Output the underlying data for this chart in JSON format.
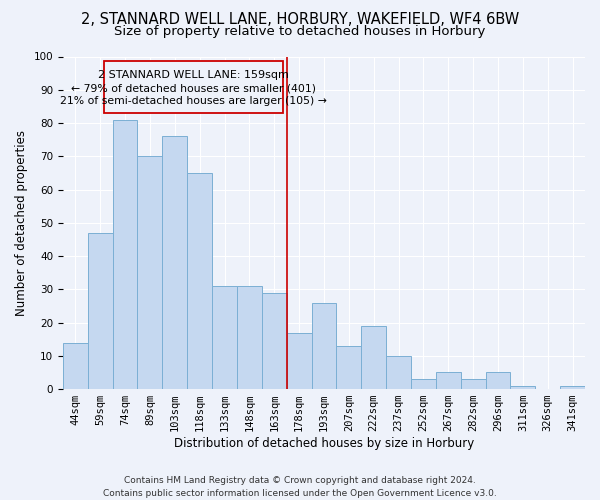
{
  "title": "2, STANNARD WELL LANE, HORBURY, WAKEFIELD, WF4 6BW",
  "subtitle": "Size of property relative to detached houses in Horbury",
  "xlabel": "Distribution of detached houses by size in Horbury",
  "ylabel": "Number of detached properties",
  "bar_labels": [
    "44sqm",
    "59sqm",
    "74sqm",
    "89sqm",
    "103sqm",
    "118sqm",
    "133sqm",
    "148sqm",
    "163sqm",
    "178sqm",
    "193sqm",
    "207sqm",
    "222sqm",
    "237sqm",
    "252sqm",
    "267sqm",
    "282sqm",
    "296sqm",
    "311sqm",
    "326sqm",
    "341sqm"
  ],
  "bar_values": [
    14,
    47,
    81,
    70,
    76,
    65,
    31,
    31,
    29,
    17,
    26,
    13,
    19,
    10,
    3,
    5,
    3,
    5,
    1,
    0,
    1
  ],
  "bar_color": "#c5d8f0",
  "bar_edge_color": "#7bafd4",
  "reference_line_color": "#cc0000",
  "annotation_lines": [
    "2 STANNARD WELL LANE: 159sqm",
    "← 79% of detached houses are smaller (401)",
    "21% of semi-detached houses are larger (105) →"
  ],
  "annotation_box_color": "#cc0000",
  "ylim": [
    0,
    100
  ],
  "footer1": "Contains HM Land Registry data © Crown copyright and database right 2024.",
  "footer2": "Contains public sector information licensed under the Open Government Licence v3.0.",
  "background_color": "#eef2fa",
  "grid_color": "#ffffff",
  "title_fontsize": 10.5,
  "subtitle_fontsize": 9.5,
  "tick_fontsize": 7.5,
  "ylabel_fontsize": 8.5,
  "xlabel_fontsize": 8.5,
  "footer_fontsize": 6.5
}
